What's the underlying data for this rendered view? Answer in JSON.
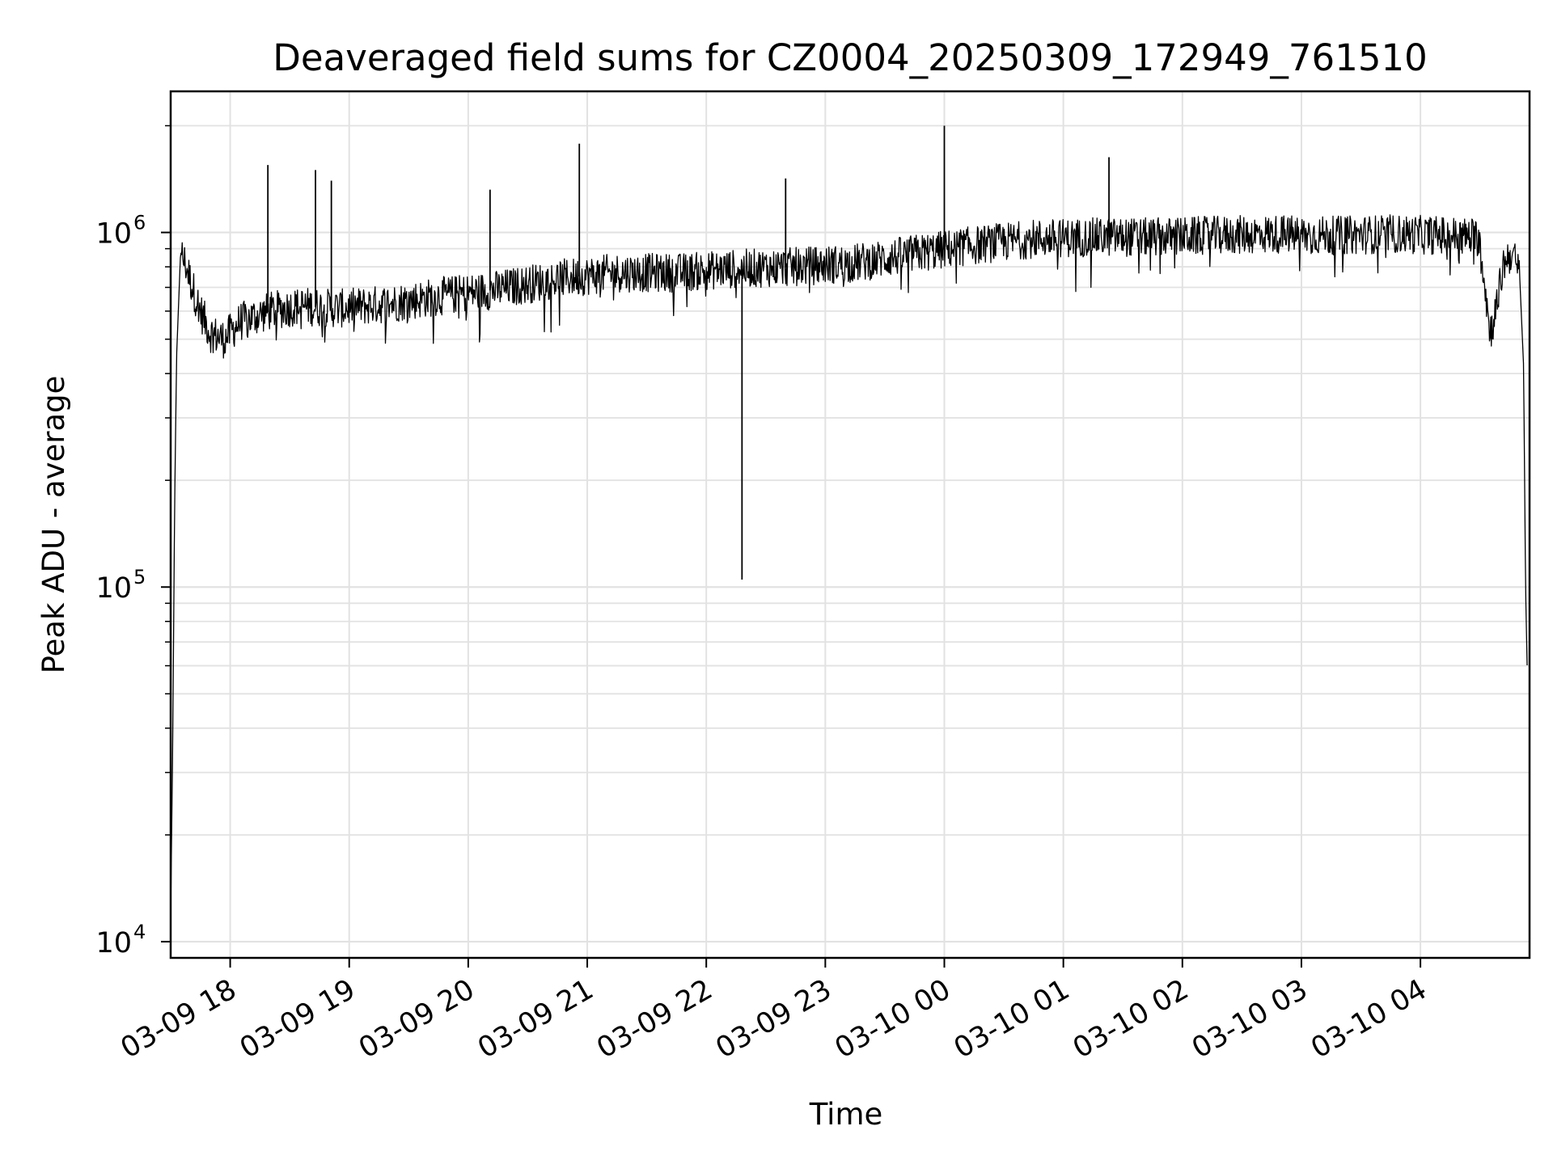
{
  "chart_data": {
    "type": "line",
    "title": "Deaveraged field sums for CZ0004_20250309_172949_761510",
    "xlabel": "Time",
    "ylabel": "Peak ADU - average",
    "yscale": "log",
    "ylim": [
      9000,
      2500000
    ],
    "xlim": [
      "2025-03-09 17:30",
      "2025-03-10 04:55"
    ],
    "grid": true,
    "line_color": "#000000",
    "x_tick_labels": [
      "03-09 18",
      "03-09 19",
      "03-09 20",
      "03-09 21",
      "03-09 22",
      "03-09 23",
      "03-10 00",
      "03-10 01",
      "03-10 02",
      "03-10 03",
      "03-10 04"
    ],
    "x_ticks": [
      "2025-03-09 18:00",
      "2025-03-09 19:00",
      "2025-03-09 20:00",
      "2025-03-09 21:00",
      "2025-03-09 22:00",
      "2025-03-09 23:00",
      "2025-03-10 00:00",
      "2025-03-10 01:00",
      "2025-03-10 02:00",
      "2025-03-10 03:00",
      "2025-03-10 04:00"
    ],
    "y_ticks": [
      {
        "value": 10000,
        "base": "10",
        "exp": "4"
      },
      {
        "value": 100000,
        "base": "10",
        "exp": "5"
      },
      {
        "value": 1000000,
        "base": "10",
        "exp": "6"
      }
    ],
    "series": [
      {
        "x": [
          "2025-03-09 17:30",
          "2025-03-09 17:31",
          "2025-03-09 17:32",
          "2025-03-09 17:33",
          "2025-03-09 17:35",
          "2025-03-09 17:38",
          "2025-03-09 17:41",
          "2025-03-09 17:45",
          "2025-03-09 17:50",
          "2025-03-09 17:57",
          "2025-03-09 18:05",
          "2025-03-09 18:20",
          "2025-03-09 18:35",
          "2025-03-09 18:55",
          "2025-03-09 19:20",
          "2025-03-09 19:45",
          "2025-03-09 20:15",
          "2025-03-09 20:45",
          "2025-03-09 21:15",
          "2025-03-09 21:45",
          "2025-03-09 22:15",
          "2025-03-09 22:45",
          "2025-03-09 23:15",
          "2025-03-09 23:45",
          "2025-03-10 00:15",
          "2025-03-10 00:45",
          "2025-03-10 01:15",
          "2025-03-10 01:45",
          "2025-03-10 02:15",
          "2025-03-10 02:45",
          "2025-03-10 03:15",
          "2025-03-10 03:45",
          "2025-03-10 04:15",
          "2025-03-10 04:30",
          "2025-03-10 04:35",
          "2025-03-10 04:38",
          "2025-03-10 04:42",
          "2025-03-10 04:46",
          "2025-03-10 04:50",
          "2025-03-10 04:52",
          "2025-03-10 04:53",
          "2025-03-10 04:54"
        ],
        "y": [
          12000,
          35000,
          170000,
          450000,
          880000,
          800000,
          700000,
          600000,
          520000,
          500000,
          560000,
          600000,
          620000,
          610000,
          630000,
          660000,
          690000,
          740000,
          770000,
          770000,
          790000,
          800000,
          820000,
          870000,
          920000,
          960000,
          970000,
          970000,
          980000,
          990000,
          980000,
          990000,
          980000,
          970000,
          520000,
          600000,
          820000,
          880000,
          760000,
          420000,
          100000,
          52000
        ],
        "spikes": [
          {
            "x": "2025-03-09 18:19",
            "y": 1550000
          },
          {
            "x": "2025-03-09 18:43",
            "y": 1500000
          },
          {
            "x": "2025-03-09 18:51",
            "y": 1400000
          },
          {
            "x": "2025-03-09 20:11",
            "y": 1320000
          },
          {
            "x": "2025-03-09 20:56",
            "y": 1780000
          },
          {
            "x": "2025-03-09 22:18",
            "y": 105000
          },
          {
            "x": "2025-03-09 22:40",
            "y": 1420000
          },
          {
            "x": "2025-03-10 00:00",
            "y": 2000000
          },
          {
            "x": "2025-03-10 01:23",
            "y": 1630000
          }
        ]
      }
    ]
  }
}
